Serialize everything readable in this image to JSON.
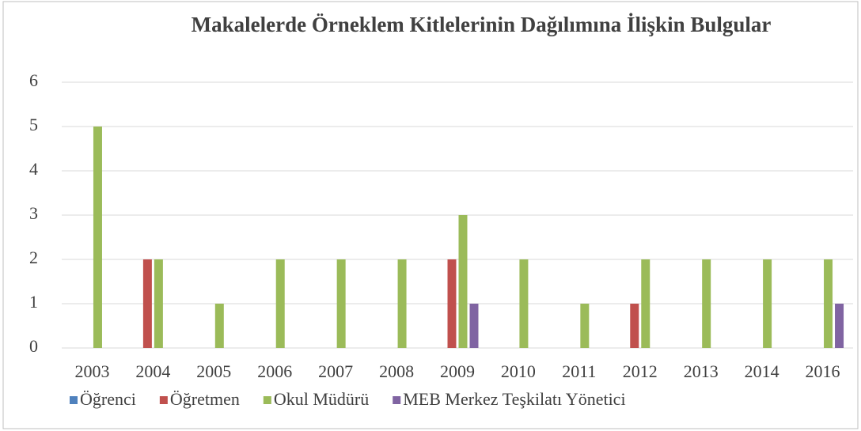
{
  "chart_data": {
    "type": "bar",
    "title": "Makalelerde Örneklem Kitlelerinin Dağılımına İlişkin Bulgular",
    "categories": [
      "2003",
      "2004",
      "2005",
      "2006",
      "2007",
      "2008",
      "2009",
      "2010",
      "2011",
      "2012",
      "2013",
      "2014",
      "2016"
    ],
    "series": [
      {
        "name": "Öğrenci",
        "color": "#4f81bd",
        "values": [
          0,
          0,
          0,
          0,
          0,
          0,
          0,
          0,
          0,
          0,
          0,
          0,
          0
        ]
      },
      {
        "name": "Öğretmen",
        "color": "#c0504d",
        "values": [
          0,
          2,
          0,
          0,
          0,
          0,
          2,
          0,
          0,
          1,
          0,
          0,
          0
        ]
      },
      {
        "name": "Okul Müdürü",
        "color": "#9bbb59",
        "values": [
          5,
          2,
          1,
          2,
          2,
          2,
          3,
          2,
          1,
          2,
          2,
          2,
          2
        ]
      },
      {
        "name": "MEB Merkez Teşkilatı Yönetici",
        "color": "#8064a2",
        "values": [
          0,
          0,
          0,
          0,
          0,
          0,
          1,
          0,
          0,
          0,
          0,
          0,
          1
        ]
      }
    ],
    "ylim": [
      0,
      6
    ],
    "yticks": [
      0,
      1,
      2,
      3,
      4,
      5,
      6
    ],
    "grid": true,
    "legend": "bottom"
  }
}
